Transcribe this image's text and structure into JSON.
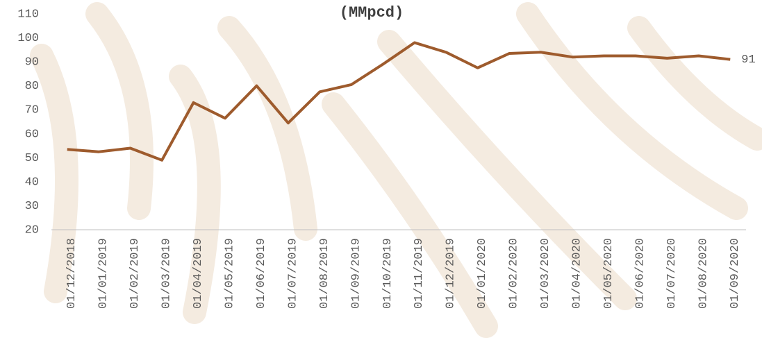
{
  "chart_data": {
    "type": "line",
    "title": "(MMpcd)",
    "categories": [
      "01/12/2018",
      "01/01/2019",
      "01/02/2019",
      "01/03/2019",
      "01/04/2019",
      "01/05/2019",
      "01/06/2019",
      "01/07/2019",
      "01/08/2019",
      "01/09/2019",
      "01/10/2019",
      "01/11/2019",
      "01/12/2019",
      "01/01/2020",
      "01/02/2020",
      "01/03/2020",
      "01/04/2020",
      "01/05/2020",
      "01/06/2020",
      "01/07/2020",
      "01/08/2020",
      "01/09/2020"
    ],
    "series": [
      {
        "color": "#9e5b2d",
        "values": [
          53.5,
          52.5,
          54,
          49,
          73,
          66.5,
          80,
          64.5,
          77.5,
          80.5,
          89,
          98,
          94,
          87.5,
          93.5,
          94,
          92,
          92.5,
          92.5,
          91.5,
          92.5,
          91
        ]
      }
    ],
    "end_label_index": 21,
    "ylim": [
      20,
      110
    ],
    "yticks": [
      20,
      30,
      40,
      50,
      60,
      70,
      80,
      90,
      100,
      110
    ],
    "grid": false
  }
}
